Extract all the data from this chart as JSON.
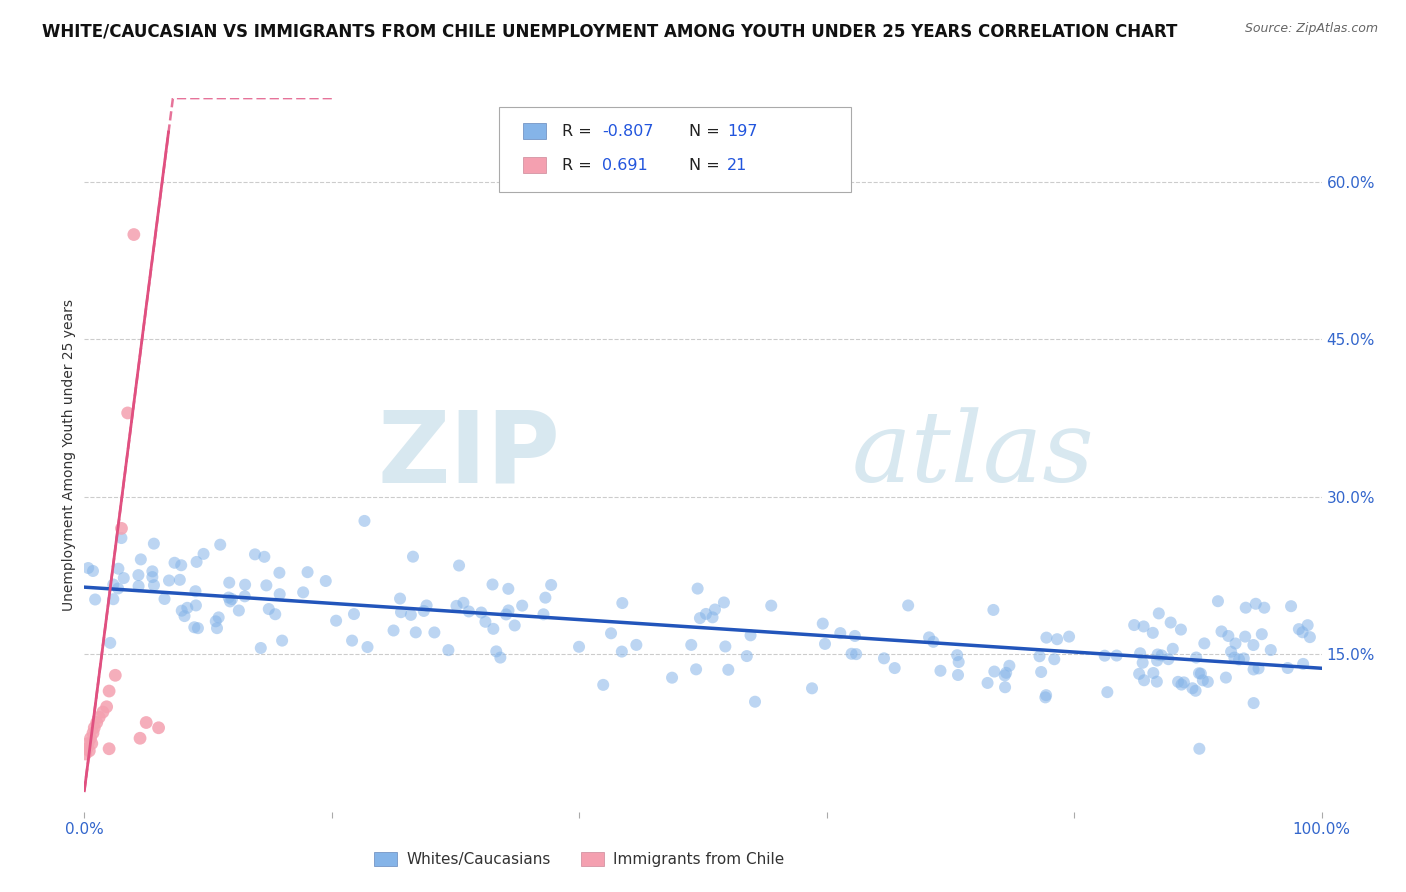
{
  "title": "WHITE/CAUCASIAN VS IMMIGRANTS FROM CHILE UNEMPLOYMENT AMONG YOUTH UNDER 25 YEARS CORRELATION CHART",
  "source": "Source: ZipAtlas.com",
  "ylabel": "Unemployment Among Youth under 25 years",
  "xlim": [
    0,
    1
  ],
  "ylim": [
    0,
    0.68
  ],
  "yticks_right": [
    0.15,
    0.3,
    0.45,
    0.6
  ],
  "ytick_labels_right": [
    "15.0%",
    "30.0%",
    "45.0%",
    "60.0%"
  ],
  "grid_color": "#cccccc",
  "background_color": "#ffffff",
  "blue_color": "#85b4e8",
  "blue_line_color": "#2255bb",
  "pink_color": "#f4a0b0",
  "pink_line_color": "#e05080",
  "R_blue": -0.807,
  "N_blue": 197,
  "R_pink": 0.691,
  "N_pink": 21,
  "legend_label_blue": "Whites/Caucasians",
  "legend_label_pink": "Immigrants from Chile",
  "watermark_zip": "ZIP",
  "watermark_atlas": "atlas",
  "title_fontsize": 12,
  "axis_label_fontsize": 10,
  "tick_fontsize": 11
}
